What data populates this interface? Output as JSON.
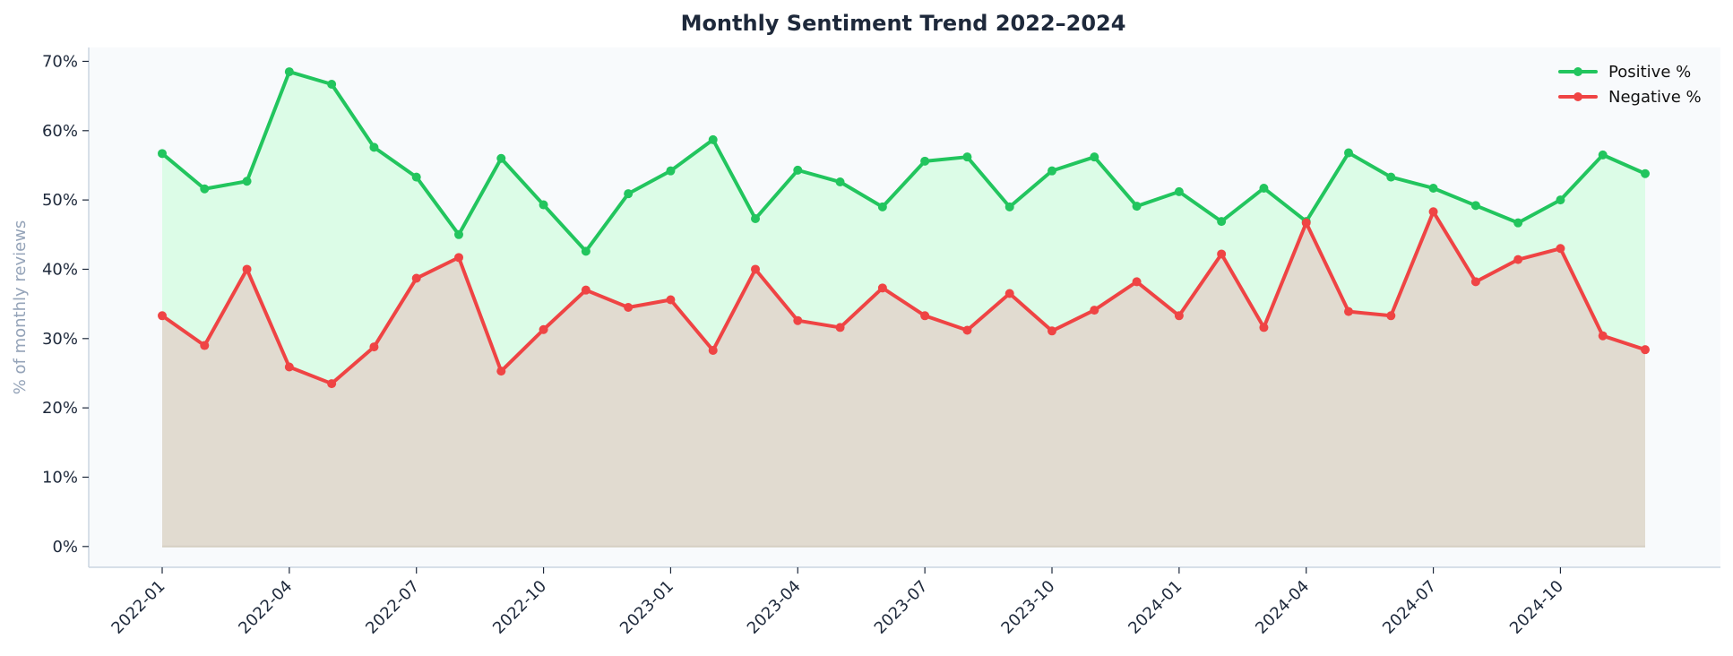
{
  "chart_data": {
    "type": "line",
    "title": "Monthly Sentiment Trend 2022–2024",
    "xlabel": "",
    "ylabel": "% of monthly reviews",
    "ylim": [
      -3,
      72
    ],
    "yticks": [
      0,
      10,
      20,
      30,
      40,
      50,
      60,
      70
    ],
    "ytick_labels": [
      "0%",
      "10%",
      "20%",
      "30%",
      "40%",
      "50%",
      "60%",
      "70%"
    ],
    "x": [
      "2022-01",
      "2022-02",
      "2022-03",
      "2022-04",
      "2022-05",
      "2022-06",
      "2022-07",
      "2022-08",
      "2022-09",
      "2022-10",
      "2022-11",
      "2022-12",
      "2023-01",
      "2023-02",
      "2023-03",
      "2023-04",
      "2023-05",
      "2023-06",
      "2023-07",
      "2023-08",
      "2023-09",
      "2023-10",
      "2023-11",
      "2023-12",
      "2024-01",
      "2024-02",
      "2024-03",
      "2024-04",
      "2024-05",
      "2024-06",
      "2024-07",
      "2024-08",
      "2024-09",
      "2024-10",
      "2024-11",
      "2024-12"
    ],
    "xtick_labels": [
      "2022-01",
      "2022-04",
      "2022-07",
      "2022-10",
      "2023-01",
      "2023-04",
      "2023-07",
      "2023-10",
      "2024-01",
      "2024-04",
      "2024-07",
      "2024-10"
    ],
    "grid": false,
    "legend_position": "top-right",
    "series": [
      {
        "name": "Positive %",
        "color": "#22c55e",
        "fill": "#dcfce7",
        "values": [
          56.7,
          51.6,
          52.7,
          68.5,
          66.7,
          57.6,
          53.3,
          45.0,
          56.0,
          49.3,
          42.6,
          50.9,
          54.2,
          58.7,
          47.3,
          54.3,
          52.6,
          49.0,
          55.6,
          56.2,
          49.0,
          54.2,
          56.2,
          49.1,
          51.2,
          46.9,
          51.7,
          46.9,
          56.8,
          53.3,
          51.7,
          49.2,
          46.7,
          50.0,
          56.5,
          53.8
        ]
      },
      {
        "name": "Negative %",
        "color": "#ef4444",
        "fill": "#e0d9cf",
        "values": [
          33.3,
          29.0,
          40.0,
          25.9,
          23.5,
          28.8,
          38.7,
          41.7,
          25.3,
          31.3,
          37.0,
          34.5,
          35.6,
          28.3,
          40.0,
          32.6,
          31.6,
          37.3,
          33.3,
          31.2,
          36.5,
          31.1,
          34.1,
          38.2,
          33.3,
          42.2,
          31.6,
          46.7,
          33.9,
          33.3,
          48.3,
          38.2,
          41.4,
          43.0,
          30.4,
          28.4
        ]
      }
    ]
  }
}
